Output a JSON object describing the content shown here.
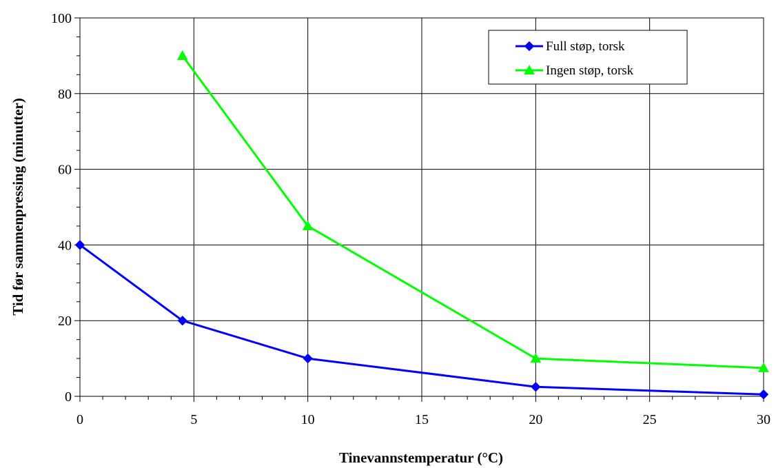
{
  "chart_data": {
    "type": "line",
    "title": "",
    "xlabel": "Tinevannstemperatur (°C)",
    "ylabel": "Tid før sammenpressing (minutter)",
    "xlim": [
      0,
      30
    ],
    "ylim": [
      0,
      100
    ],
    "x_ticks": [
      0,
      5,
      10,
      15,
      20,
      25,
      30
    ],
    "y_ticks": [
      0,
      20,
      40,
      60,
      80,
      100
    ],
    "grid": true,
    "legend_position": "top-right",
    "series": [
      {
        "name": "Full støp, torsk",
        "color": "#0000ff",
        "marker": "diamond",
        "x": [
          0,
          4.5,
          10,
          20,
          30
        ],
        "y": [
          40,
          20,
          10,
          2.5,
          0.5
        ]
      },
      {
        "name": "Ingen støp, torsk",
        "color": "#00ff00",
        "marker": "triangle",
        "x": [
          4.5,
          10,
          20,
          30
        ],
        "y": [
          90,
          45,
          10,
          7.5
        ]
      }
    ]
  }
}
